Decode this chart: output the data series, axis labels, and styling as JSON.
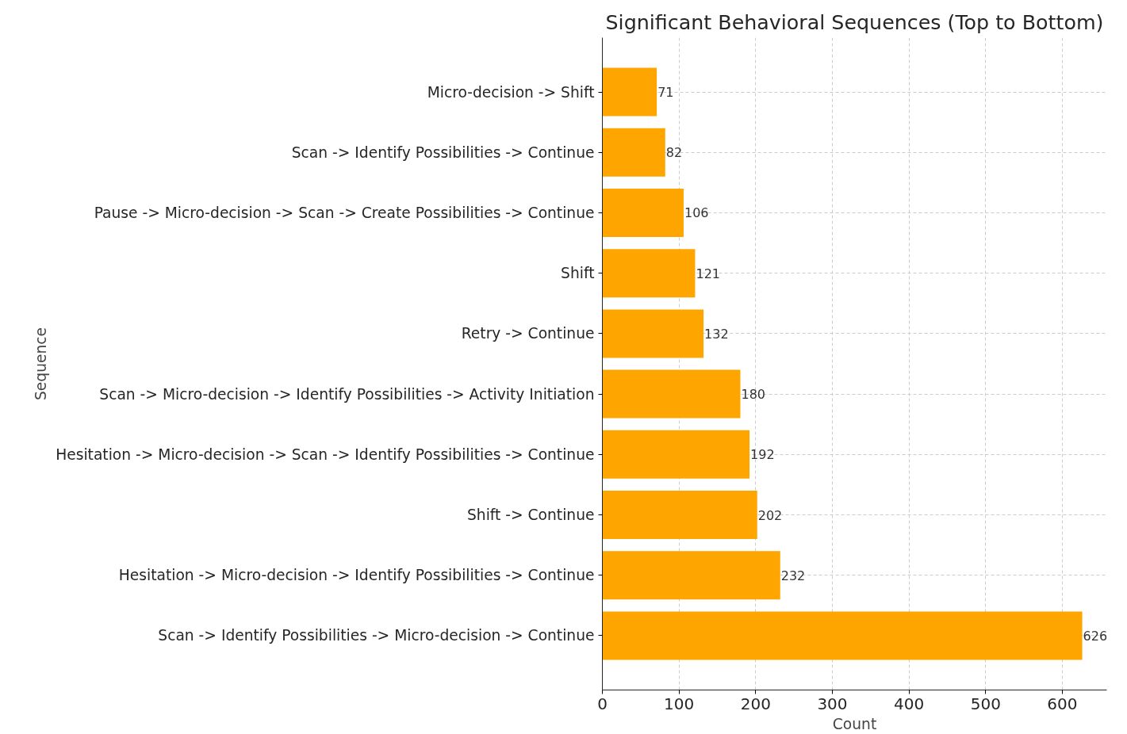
{
  "chart_data": {
    "type": "bar",
    "orientation": "horizontal",
    "title": "Significant Behavioral Sequences (Top to Bottom)",
    "xlabel": "Count",
    "ylabel": "Sequence",
    "categories": [
      "Micro-decision -> Shift",
      "Scan -> Identify Possibilities -> Continue",
      "Pause -> Micro-decision -> Scan -> Create Possibilities -> Continue",
      "Shift",
      "Retry -> Continue",
      "Scan -> Micro-decision -> Identify Possibilities -> Activity Initiation",
      "Hesitation -> Micro-decision -> Scan -> Identify Possibilities -> Continue",
      "Shift -> Continue",
      "Hesitation -> Micro-decision -> Identify Possibilities -> Continue",
      "Scan -> Identify Possibilities -> Micro-decision -> Continue"
    ],
    "values": [
      71,
      82,
      106,
      121,
      132,
      180,
      192,
      202,
      232,
      626
    ],
    "color": "#ffa500",
    "data_labels": true,
    "xlim": [
      0,
      658
    ],
    "xticks": [
      0,
      100,
      200,
      300,
      400,
      500,
      600
    ],
    "grid": true
  }
}
